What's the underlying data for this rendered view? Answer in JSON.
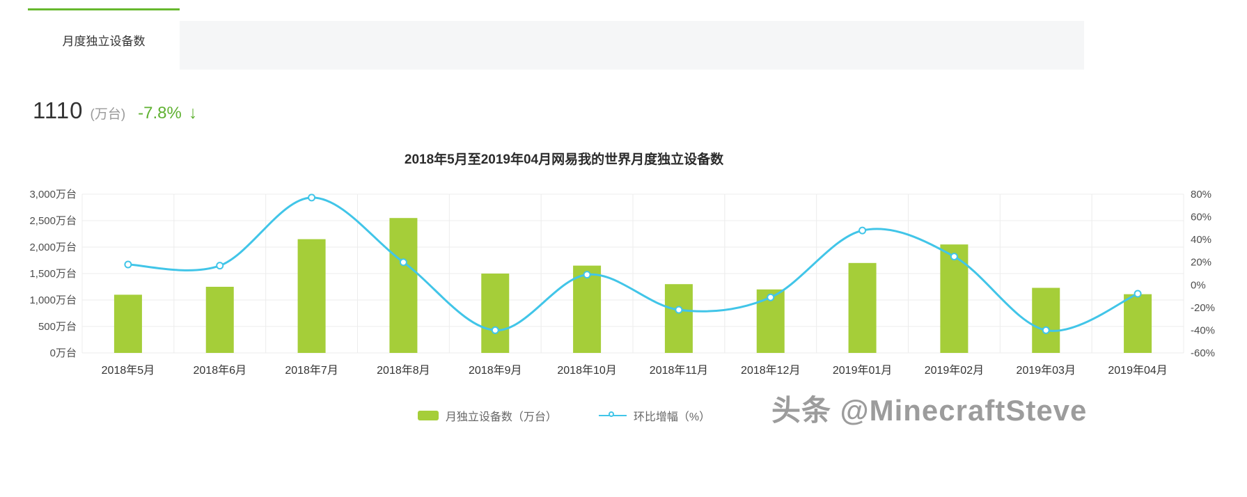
{
  "tabs": {
    "active": "月度独立设备数"
  },
  "headline": {
    "value": "1110",
    "unit": "(万台)",
    "change": "-7.8%",
    "arrow": "↓"
  },
  "chart_data": {
    "type": "bar",
    "title": "2018年5月至2019年04月网易我的世界月度独立设备数",
    "categories": [
      "2018年5月",
      "2018年6月",
      "2018年7月",
      "2018年8月",
      "2018年9月",
      "2018年10月",
      "2018年11月",
      "2018年12月",
      "2019年01月",
      "2019年02月",
      "2019年03月",
      "2019年04月"
    ],
    "series": [
      {
        "name": "月独立设备数（万台）",
        "type": "bar",
        "axis": "left",
        "color": "#a5ce39",
        "values": [
          1100,
          1250,
          2150,
          2550,
          1500,
          1650,
          1300,
          1200,
          1700,
          2050,
          1230,
          1110
        ]
      },
      {
        "name": "环比增幅（%）",
        "type": "line",
        "axis": "right",
        "color": "#41c5e8",
        "values": [
          18,
          17,
          77,
          20,
          -40,
          9,
          -22,
          -11,
          48,
          25,
          -40,
          -7.8
        ]
      }
    ],
    "left_axis": {
      "min": 0,
      "max": 3000,
      "step": 500,
      "tick_values": [
        0,
        500,
        1000,
        1500,
        2000,
        2500,
        3000
      ],
      "tick_labels": [
        "0万台",
        "500万台",
        "1,000万台",
        "1,500万台",
        "2,000万台",
        "2,500万台",
        "3,000万台"
      ]
    },
    "right_axis": {
      "min": -60,
      "max": 80,
      "step": 20,
      "tick_values": [
        -60,
        -40,
        -20,
        0,
        20,
        40,
        60,
        80
      ],
      "tick_labels": [
        "-60%",
        "-40%",
        "-20%",
        "0%",
        "20%",
        "40%",
        "60%",
        "80%"
      ]
    },
    "grid": true,
    "legend_position": "bottom"
  },
  "watermark": "头条 @MinecraftSteve",
  "colors": {
    "bar": "#a5ce39",
    "line": "#41c5e8",
    "tab_accent": "#66b82e",
    "change_green": "#5fb131",
    "grid": "#ececec",
    "tab_rest_bg": "#f5f6f7",
    "watermark": "#9c9c9c"
  }
}
